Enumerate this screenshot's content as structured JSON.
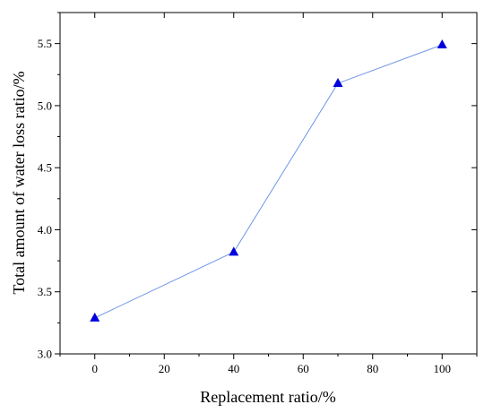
{
  "chart_data": {
    "type": "line",
    "title": "",
    "xlabel": "Replacement ratio/%",
    "ylabel": "Total amount of water loss ratio/%",
    "xlim": [
      -10,
      110
    ],
    "ylim": [
      3.0,
      5.75
    ],
    "x_ticks": [
      0,
      20,
      40,
      60,
      80,
      100
    ],
    "x_tick_labels": [
      "0",
      "20",
      "40",
      "60",
      "80",
      "100"
    ],
    "y_ticks": [
      3.0,
      3.5,
      4.0,
      4.5,
      5.0,
      5.5
    ],
    "y_tick_labels": [
      "3.0",
      "3.5",
      "4.0",
      "4.5",
      "5.0",
      "5.5"
    ],
    "grid": false,
    "series": [
      {
        "x": [
          0,
          40,
          70,
          100
        ],
        "y": [
          3.29,
          3.82,
          5.18,
          5.49
        ],
        "line_color": "#6f96e6",
        "marker": "triangle",
        "marker_color": "#0000dd"
      }
    ]
  }
}
